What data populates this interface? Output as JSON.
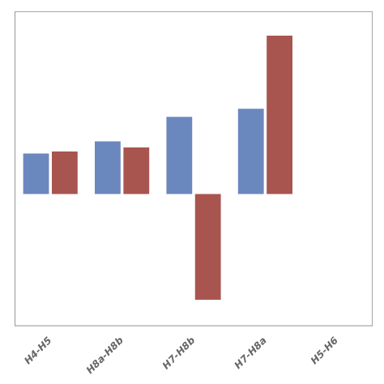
{
  "chart_data": {
    "type": "bar",
    "categories": [
      "H4-H5",
      "H8a-H8b",
      "H7-H8b",
      "H7-H8a",
      "H5-H6"
    ],
    "series": [
      {
        "color": "#6B88BE",
        "values": [
          0.2,
          0.26,
          0.38,
          0.42,
          0.0
        ]
      },
      {
        "color": "#A85550",
        "values": [
          0.21,
          0.23,
          -0.52,
          0.78,
          0.0
        ]
      }
    ],
    "ylim": [
      -0.65,
      0.9
    ],
    "grid": false,
    "tick_labels": "x"
  }
}
